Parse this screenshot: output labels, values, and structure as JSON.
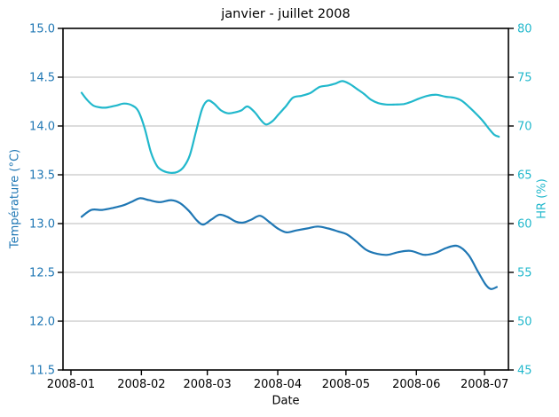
{
  "background_color": "#ffffff",
  "chart_data": {
    "type": "line",
    "title": "janvier - juillet 2008",
    "xlabel": "Date",
    "grid": {
      "show": true,
      "color": "#b9b9b9",
      "tick_values": [
        14.5,
        14.0,
        13.5,
        13.0,
        12.5,
        12.0
      ]
    },
    "frame_color": "#000000",
    "x_axis": {
      "start_date": "2008-01-01",
      "tick_labels": [
        "2008-01",
        "2008-02",
        "2008-03",
        "2008-04",
        "2008-05",
        "2008-06",
        "2008-07"
      ],
      "tick_days": [
        0,
        31,
        60,
        91,
        121,
        152,
        182
      ],
      "range_days": [
        -3.5,
        192.5
      ],
      "label_color": "#000000"
    },
    "left_axis": {
      "label": "Température (°C)",
      "color": "#1f77b4",
      "range": [
        11.5,
        15.0
      ],
      "ticks": [
        15.0,
        14.5,
        14.0,
        13.5,
        13.0,
        12.5,
        12.0,
        11.5
      ],
      "tick_labels": [
        "15.0",
        "14.5",
        "14.0",
        "13.5",
        "13.0",
        "12.5",
        "12.0",
        "11.5"
      ]
    },
    "right_axis": {
      "label": "HR (%)",
      "color": "#21b8cc",
      "range": [
        45,
        80
      ],
      "ticks": [
        80,
        75,
        70,
        65,
        60,
        55,
        50,
        45
      ],
      "tick_labels": [
        "80",
        "75",
        "70",
        "65",
        "60",
        "55",
        "50",
        "45"
      ]
    },
    "series": [
      {
        "id": "temperature",
        "name": "Température",
        "axis": "left",
        "color": "#1f77b4",
        "line_width": 2.2,
        "points": [
          [
            4.7,
            13.07
          ],
          [
            9.0,
            13.14
          ],
          [
            13.7,
            13.14
          ],
          [
            18.4,
            13.16
          ],
          [
            23.4,
            13.19
          ],
          [
            27.3,
            13.23
          ],
          [
            30.5,
            13.26
          ],
          [
            34.4,
            13.24
          ],
          [
            39.1,
            13.22
          ],
          [
            44.1,
            13.24
          ],
          [
            48.0,
            13.21
          ],
          [
            51.9,
            13.13
          ],
          [
            55.5,
            13.03
          ],
          [
            58.2,
            12.99
          ],
          [
            61.7,
            13.04
          ],
          [
            65.2,
            13.09
          ],
          [
            68.7,
            13.07
          ],
          [
            72.6,
            13.02
          ],
          [
            75.8,
            13.01
          ],
          [
            79.3,
            13.04
          ],
          [
            83.2,
            13.08
          ],
          [
            87.1,
            13.02
          ],
          [
            91.0,
            12.95
          ],
          [
            94.9,
            12.91
          ],
          [
            99.2,
            12.93
          ],
          [
            103.9,
            12.95
          ],
          [
            108.6,
            12.97
          ],
          [
            113.2,
            12.95
          ],
          [
            117.5,
            12.92
          ],
          [
            121.4,
            12.89
          ],
          [
            125.4,
            12.82
          ],
          [
            130.0,
            12.73
          ],
          [
            134.7,
            12.69
          ],
          [
            139.4,
            12.68
          ],
          [
            144.5,
            12.71
          ],
          [
            149.6,
            12.72
          ],
          [
            155.4,
            12.68
          ],
          [
            160.5,
            12.7
          ],
          [
            165.2,
            12.75
          ],
          [
            170.2,
            12.77
          ],
          [
            174.9,
            12.68
          ],
          [
            178.8,
            12.52
          ],
          [
            182.3,
            12.38
          ],
          [
            184.7,
            12.33
          ],
          [
            187.4,
            12.35
          ]
        ]
      },
      {
        "id": "humidity",
        "name": "HR",
        "axis": "right",
        "color": "#21b8cc",
        "line_width": 2.2,
        "points": [
          [
            4.7,
            73.4
          ],
          [
            7.0,
            72.7
          ],
          [
            9.8,
            72.1
          ],
          [
            13.0,
            71.9
          ],
          [
            16.0,
            71.9
          ],
          [
            20.0,
            72.1
          ],
          [
            23.4,
            72.3
          ],
          [
            27.0,
            72.1
          ],
          [
            29.7,
            71.5
          ],
          [
            32.4,
            69.8
          ],
          [
            35.2,
            67.3
          ],
          [
            37.9,
            65.9
          ],
          [
            40.6,
            65.4
          ],
          [
            43.8,
            65.2
          ],
          [
            46.9,
            65.3
          ],
          [
            49.6,
            65.8
          ],
          [
            52.3,
            67.0
          ],
          [
            55.1,
            69.5
          ],
          [
            57.8,
            71.8
          ],
          [
            60.2,
            72.6
          ],
          [
            62.9,
            72.3
          ],
          [
            66.0,
            71.6
          ],
          [
            69.1,
            71.3
          ],
          [
            72.3,
            71.4
          ],
          [
            75.0,
            71.6
          ],
          [
            77.7,
            72.0
          ],
          [
            80.9,
            71.4
          ],
          [
            83.6,
            70.6
          ],
          [
            85.9,
            70.15
          ],
          [
            88.7,
            70.5
          ],
          [
            91.4,
            71.2
          ],
          [
            94.5,
            72.0
          ],
          [
            97.7,
            72.9
          ],
          [
            101.6,
            73.1
          ],
          [
            105.5,
            73.4
          ],
          [
            109.4,
            74.0
          ],
          [
            113.3,
            74.15
          ],
          [
            116.4,
            74.35
          ],
          [
            119.5,
            74.6
          ],
          [
            122.7,
            74.3
          ],
          [
            125.8,
            73.8
          ],
          [
            128.9,
            73.3
          ],
          [
            132.0,
            72.7
          ],
          [
            135.2,
            72.35
          ],
          [
            138.7,
            72.2
          ],
          [
            142.6,
            72.2
          ],
          [
            146.5,
            72.25
          ],
          [
            150.0,
            72.5
          ],
          [
            153.1,
            72.8
          ],
          [
            157.0,
            73.1
          ],
          [
            160.9,
            73.2
          ],
          [
            164.8,
            73.0
          ],
          [
            168.4,
            72.9
          ],
          [
            171.9,
            72.6
          ],
          [
            175.4,
            71.9
          ],
          [
            178.5,
            71.2
          ],
          [
            181.3,
            70.5
          ],
          [
            184.0,
            69.7
          ],
          [
            186.3,
            69.1
          ],
          [
            188.3,
            68.9
          ]
        ]
      }
    ]
  }
}
